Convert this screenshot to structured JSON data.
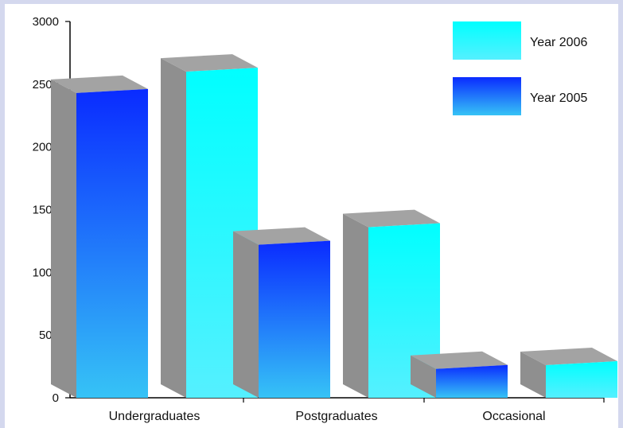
{
  "chart_data": {
    "type": "bar",
    "title": "",
    "xlabel": "",
    "ylabel": "",
    "categories": [
      "Undergraduates",
      "Postgraduates",
      "Occasional"
    ],
    "series": [
      {
        "name": "Year 2005",
        "values": [
          2430,
          1220,
          230
        ],
        "color": "#0a2bff"
      },
      {
        "name": "Year 2006",
        "values": [
          2600,
          1360,
          260
        ],
        "color": "#00ffff"
      }
    ],
    "ylim": [
      0,
      3000
    ],
    "yticks": [
      0,
      500,
      1000,
      1500,
      2000,
      2500,
      3000
    ],
    "grid": false,
    "legend": {
      "placement": "top-right",
      "entries": [
        {
          "label": "Year 2006",
          "color": "#00ffff"
        },
        {
          "label": "Year 2005",
          "color": "#0a2bff"
        }
      ]
    },
    "style": "3d",
    "side_color": "#8f8f8f",
    "top_color": "#a3a3a3"
  }
}
